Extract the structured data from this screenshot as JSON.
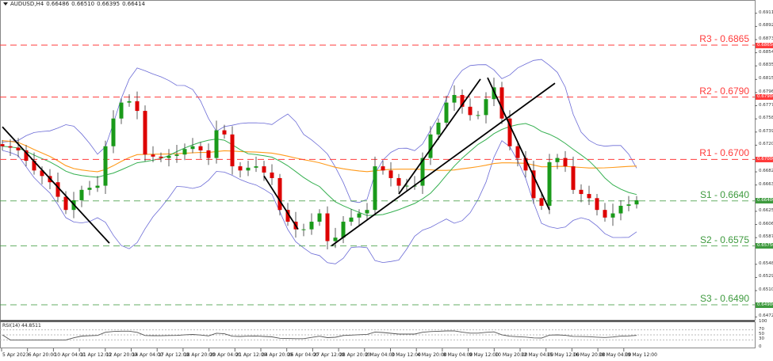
{
  "header": {
    "symbol": "AUDUSD,H4",
    "open": "0.66486",
    "high": "0.66510",
    "low": "0.66395",
    "close": "0.66414"
  },
  "colors": {
    "bull": "#1a9a1a",
    "bear": "#dd0000",
    "resistance": "#ff3b3b",
    "support": "#3e9a3e",
    "bands": "#6b6bd6",
    "ma_green": "#35b050",
    "ma_orange": "#ff9a1a",
    "trendline": "#000000"
  },
  "chart_data": {
    "type": "candlestick",
    "title": "AUDUSD,H4",
    "closes": [
      0.6719,
      0.6717,
      0.6713,
      0.6698,
      0.6684,
      0.6676,
      0.6667,
      0.6646,
      0.6627,
      0.6641,
      0.6656,
      0.6659,
      0.6662,
      0.6719,
      0.6759,
      0.6782,
      0.6784,
      0.677,
      0.6707,
      0.6704,
      0.6702,
      0.6705,
      0.6707,
      0.6715,
      0.6719,
      0.6713,
      0.6702,
      0.6742,
      0.6736,
      0.669,
      0.6684,
      0.6688,
      0.669,
      0.6681,
      0.6673,
      0.6627,
      0.661,
      0.6599,
      0.6599,
      0.661,
      0.6622,
      0.6582,
      0.6587,
      0.661,
      0.6616,
      0.6622,
      0.6627,
      0.669,
      0.6684,
      0.6673,
      0.6662,
      0.6662,
      0.6662,
      0.6702,
      0.6736,
      0.6753,
      0.6782,
      0.6793,
      0.6776,
      0.6764,
      0.6764,
      0.6787,
      0.6804,
      0.6759,
      0.6719,
      0.6702,
      0.6684,
      0.6644,
      0.6633,
      0.6696,
      0.6702,
      0.669,
      0.6656,
      0.665,
      0.6644,
      0.6627,
      0.6616,
      0.6622,
      0.6633,
      0.6635,
      0.6641
    ],
    "ylim": [
      0.6465,
      0.6915
    ],
    "y_ticks": [
      "0.69110",
      "0.68920",
      "0.68730",
      "0.68540",
      "0.68350",
      "0.68155",
      "0.67965",
      "0.67775",
      "0.67585",
      "0.67395",
      "0.67205",
      "0.66820",
      "0.66630",
      "0.66250",
      "0.66060",
      "0.65870",
      "0.65485",
      "0.65295",
      "0.65105",
      "0.64725"
    ],
    "x_ticks": [
      "5 Apr 2023",
      "6 Apr 20:00",
      "10 Apr 04:00",
      "11 Apr 12:00",
      "12 Apr 20:00",
      "14 Apr 04:00",
      "17 Apr 12:00",
      "18 Apr 20:00",
      "20 Apr 04:00",
      "21 Apr 12:00",
      "24 Apr 20:00",
      "26 Apr 04:00",
      "27 Apr 12:00",
      "28 Apr 20:00",
      "2 May 04:00",
      "3 May 12:00",
      "4 May 20:00",
      "8 May 04:00",
      "9 May 12:00",
      "10 May 20:00",
      "12 May 04:00",
      "15 May 12:00",
      "16 May 20:00",
      "18 May 04:00",
      "19 May 12:00"
    ],
    "levels": [
      {
        "name": "R3",
        "label": "R3 - 0.6865",
        "value": 0.6865,
        "marker": "0.68650",
        "type": "resistance"
      },
      {
        "name": "R2",
        "label": "R2 - 0.6790",
        "value": 0.679,
        "marker": "0.67900",
        "type": "resistance"
      },
      {
        "name": "R1",
        "label": "R1 - 0.6700",
        "value": 0.67,
        "marker": "0.67000",
        "type": "resistance"
      },
      {
        "name": "S1",
        "label": "S1 - 0.6640",
        "value": 0.664,
        "marker": "0.66400",
        "type": "support"
      },
      {
        "name": "S2",
        "label": "S2 - 0.6575",
        "value": 0.6575,
        "marker": "0.65750",
        "type": "support"
      },
      {
        "name": "S3",
        "label": "S3 - 0.6490",
        "value": 0.649,
        "marker": "0.64900",
        "type": "support"
      }
    ],
    "trendlines": [
      [
        [
          0,
          0.6747
        ],
        [
          13.5,
          0.6579
        ]
      ],
      [
        [
          33,
          0.6676
        ],
        [
          37.3,
          0.6599
        ]
      ],
      [
        [
          41.5,
          0.6575
        ],
        [
          69.7,
          0.681
        ]
      ],
      [
        [
          50,
          0.665
        ],
        [
          60.3,
          0.6816
        ]
      ],
      [
        [
          61.2,
          0.6818
        ],
        [
          69,
          0.6627
        ]
      ]
    ],
    "rsi": {
      "label": "RSI(14) 44.8511",
      "ticks": [
        "100",
        "70",
        "50",
        "30",
        "0"
      ],
      "levels": [
        70,
        50,
        30
      ]
    }
  }
}
